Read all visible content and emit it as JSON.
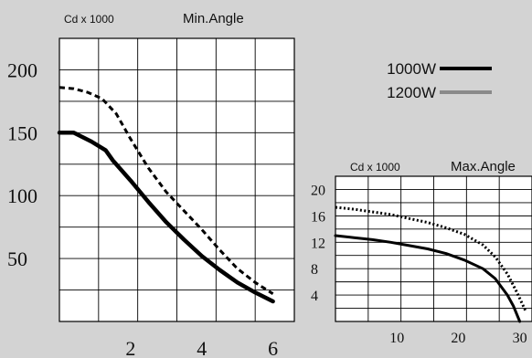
{
  "chart_data": [
    {
      "type": "line",
      "unit_label": "Cd x 1000",
      "title": "Min.Angle",
      "xlim": [
        0,
        6.6
      ],
      "ylim": [
        0,
        225
      ],
      "x_ticks": [
        2,
        4,
        6
      ],
      "y_ticks": [
        50,
        100,
        150,
        200
      ],
      "grid": true,
      "series": [
        {
          "style": "solid",
          "color": "#000000",
          "points": [
            [
              0,
              150
            ],
            [
              0.4,
              150
            ],
            [
              0.9,
              143
            ],
            [
              1.3,
              136
            ],
            [
              1.5,
              128
            ],
            [
              2,
              112
            ],
            [
              2.5,
              95
            ],
            [
              3,
              79
            ],
            [
              3.5,
              65
            ],
            [
              4,
              52
            ],
            [
              4.5,
              41
            ],
            [
              5,
              31
            ],
            [
              5.5,
              23
            ],
            [
              6,
              16
            ]
          ]
        },
        {
          "style": "dashed",
          "color": "#000000",
          "points": [
            [
              0,
              186
            ],
            [
              0.4,
              185
            ],
            [
              0.8,
              182
            ],
            [
              1.2,
              177
            ],
            [
              1.6,
              165
            ],
            [
              2,
              145
            ],
            [
              2.5,
              122
            ],
            [
              3,
              103
            ],
            [
              3.5,
              88
            ],
            [
              4,
              73
            ],
            [
              4.5,
              57
            ],
            [
              5,
              42
            ],
            [
              5.5,
              31
            ],
            [
              6,
              22
            ]
          ]
        }
      ]
    },
    {
      "type": "line",
      "unit_label": "Cd x 1000",
      "title": "Max.Angle",
      "xlim": [
        0,
        32
      ],
      "ylim": [
        0,
        22
      ],
      "x_ticks": [
        10,
        20,
        30
      ],
      "y_ticks": [
        4,
        8,
        12,
        16,
        20
      ],
      "grid": true,
      "series": [
        {
          "style": "solid",
          "color": "#000000",
          "points": [
            [
              0,
              13
            ],
            [
              3,
              12.7
            ],
            [
              6,
              12.4
            ],
            [
              9,
              12
            ],
            [
              12,
              11.5
            ],
            [
              15,
              11
            ],
            [
              18,
              10.3
            ],
            [
              21,
              9.3
            ],
            [
              24,
              8
            ],
            [
              26,
              6.5
            ],
            [
              28,
              4
            ],
            [
              29,
              2.3
            ],
            [
              30,
              0
            ]
          ]
        },
        {
          "style": "dotted",
          "color": "#000000",
          "points": [
            [
              0,
              17.3
            ],
            [
              3,
              17
            ],
            [
              6,
              16.6
            ],
            [
              9,
              16.2
            ],
            [
              12,
              15.6
            ],
            [
              15,
              15
            ],
            [
              18,
              14.2
            ],
            [
              21,
              13.2
            ],
            [
              24,
              11.6
            ],
            [
              26,
              9.8
            ],
            [
              28,
              7.2
            ],
            [
              29.5,
              4.5
            ],
            [
              31,
              1.5
            ]
          ]
        }
      ]
    }
  ],
  "legend": [
    {
      "label": "1000W",
      "color": "#000000"
    },
    {
      "label": "1200W",
      "color": "#8a8a8a"
    }
  ]
}
